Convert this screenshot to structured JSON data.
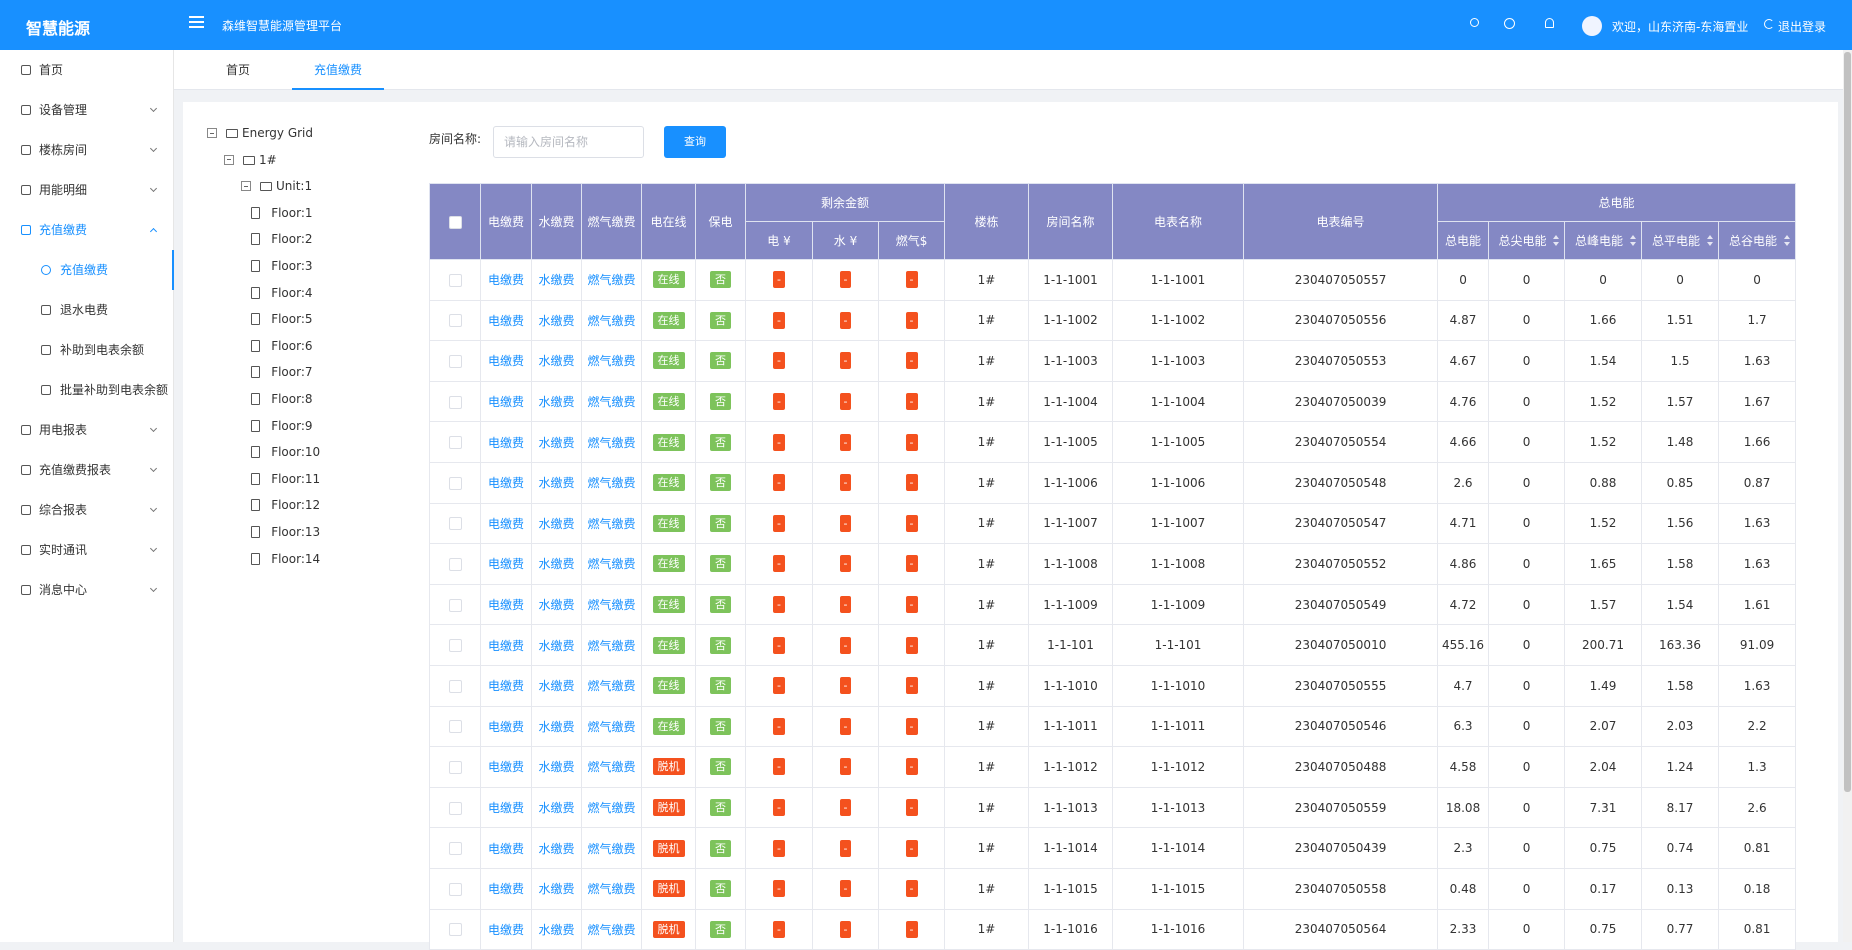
{
  "header": {
    "logo": "智慧能源",
    "platform": "森维智慧能源管理平台",
    "welcome": "欢迎，山东济南-东海置业",
    "logout": "退出登录"
  },
  "sidebar": {
    "active": 4,
    "active_child": 0,
    "items": [
      {
        "label": "首页"
      },
      {
        "label": "设备管理"
      },
      {
        "label": "楼栋房间"
      },
      {
        "label": "用能明细"
      },
      {
        "label": "充值缴费",
        "children": [
          "充值缴费",
          "退水电费",
          "补助到电表余额",
          "批量补助到电表余额"
        ]
      },
      {
        "label": "用电报表"
      },
      {
        "label": "充值缴费报表"
      },
      {
        "label": "综合报表"
      },
      {
        "label": "实时通讯"
      },
      {
        "label": "消息中心"
      }
    ]
  },
  "tabs": {
    "items": [
      "首页",
      "充值缴费"
    ],
    "active": 1
  },
  "tree": {
    "root": "Energy Grid",
    "building": "1#",
    "unit": "Unit:1",
    "floors": [
      "Floor:1",
      "Floor:2",
      "Floor:3",
      "Floor:4",
      "Floor:5",
      "Floor:6",
      "Floor:7",
      "Floor:8",
      "Floor:9",
      "Floor:10",
      "Floor:11",
      "Floor:12",
      "Floor:13",
      "Floor:14"
    ]
  },
  "search": {
    "label": "房间名称:",
    "placeholder": "请输入房间名称",
    "button": "查询"
  },
  "table": {
    "columns_before": [
      "电缴费",
      "水缴费",
      "燃气缴费",
      "电在线",
      "保电"
    ],
    "balance_group": {
      "label": "剩余金额",
      "columns": [
        "电 ¥",
        "水 ¥",
        "燃气$"
      ]
    },
    "columns_middle": [
      "楼栋",
      "房间名称",
      "电表名称",
      "电表编号"
    ],
    "energy_group": {
      "label": "总电能",
      "columns": [
        "总电能",
        "总尖电能",
        "总峰电能",
        "总平电能",
        "总谷电能"
      ]
    },
    "tag_colors": {
      "在线": "#7dc35b",
      "脱机": "#f4511e",
      "否": "#7dc35b",
      "-": "#f4511e"
    },
    "rows": [
      [
        "电缴费",
        "水缴费",
        "燃气缴费",
        "在线",
        "否",
        "-",
        "-",
        "-",
        "1#",
        "1-1-1001",
        "1-1-1001",
        "230407050557",
        0,
        0,
        0,
        0,
        0
      ],
      [
        "电缴费",
        "水缴费",
        "燃气缴费",
        "在线",
        "否",
        "-",
        "-",
        "-",
        "1#",
        "1-1-1002",
        "1-1-1002",
        "230407050556",
        4.87,
        0,
        1.66,
        1.51,
        1.7
      ],
      [
        "电缴费",
        "水缴费",
        "燃气缴费",
        "在线",
        "否",
        "-",
        "-",
        "-",
        "1#",
        "1-1-1003",
        "1-1-1003",
        "230407050553",
        4.67,
        0,
        1.54,
        1.5,
        1.63
      ],
      [
        "电缴费",
        "水缴费",
        "燃气缴费",
        "在线",
        "否",
        "-",
        "-",
        "-",
        "1#",
        "1-1-1004",
        "1-1-1004",
        "230407050039",
        4.76,
        0,
        1.52,
        1.57,
        1.67
      ],
      [
        "电缴费",
        "水缴费",
        "燃气缴费",
        "在线",
        "否",
        "-",
        "-",
        "-",
        "1#",
        "1-1-1005",
        "1-1-1005",
        "230407050554",
        4.66,
        0,
        1.52,
        1.48,
        1.66
      ],
      [
        "电缴费",
        "水缴费",
        "燃气缴费",
        "在线",
        "否",
        "-",
        "-",
        "-",
        "1#",
        "1-1-1006",
        "1-1-1006",
        "230407050548",
        2.6,
        0,
        0.88,
        0.85,
        0.87
      ],
      [
        "电缴费",
        "水缴费",
        "燃气缴费",
        "在线",
        "否",
        "-",
        "-",
        "-",
        "1#",
        "1-1-1007",
        "1-1-1007",
        "230407050547",
        4.71,
        0,
        1.52,
        1.56,
        1.63
      ],
      [
        "电缴费",
        "水缴费",
        "燃气缴费",
        "在线",
        "否",
        "-",
        "-",
        "-",
        "1#",
        "1-1-1008",
        "1-1-1008",
        "230407050552",
        4.86,
        0,
        1.65,
        1.58,
        1.63
      ],
      [
        "电缴费",
        "水缴费",
        "燃气缴费",
        "在线",
        "否",
        "-",
        "-",
        "-",
        "1#",
        "1-1-1009",
        "1-1-1009",
        "230407050549",
        4.72,
        0,
        1.57,
        1.54,
        1.61
      ],
      [
        "电缴费",
        "水缴费",
        "燃气缴费",
        "在线",
        "否",
        "-",
        "-",
        "-",
        "1#",
        "1-1-101",
        "1-1-101",
        "230407050010",
        455.16,
        0,
        200.71,
        163.36,
        91.09
      ],
      [
        "电缴费",
        "水缴费",
        "燃气缴费",
        "在线",
        "否",
        "-",
        "-",
        "-",
        "1#",
        "1-1-1010",
        "1-1-1010",
        "230407050555",
        4.7,
        0,
        1.49,
        1.58,
        1.63
      ],
      [
        "电缴费",
        "水缴费",
        "燃气缴费",
        "在线",
        "否",
        "-",
        "-",
        "-",
        "1#",
        "1-1-1011",
        "1-1-1011",
        "230407050546",
        6.3,
        0,
        2.07,
        2.03,
        2.2
      ],
      [
        "电缴费",
        "水缴费",
        "燃气缴费",
        "脱机",
        "否",
        "-",
        "-",
        "-",
        "1#",
        "1-1-1012",
        "1-1-1012",
        "230407050488",
        4.58,
        0,
        2.04,
        1.24,
        1.3
      ],
      [
        "电缴费",
        "水缴费",
        "燃气缴费",
        "脱机",
        "否",
        "-",
        "-",
        "-",
        "1#",
        "1-1-1013",
        "1-1-1013",
        "230407050559",
        18.08,
        0,
        7.31,
        8.17,
        2.6
      ],
      [
        "电缴费",
        "水缴费",
        "燃气缴费",
        "脱机",
        "否",
        "-",
        "-",
        "-",
        "1#",
        "1-1-1014",
        "1-1-1014",
        "230407050439",
        2.3,
        0,
        0.75,
        0.74,
        0.81
      ],
      [
        "电缴费",
        "水缴费",
        "燃气缴费",
        "脱机",
        "否",
        "-",
        "-",
        "-",
        "1#",
        "1-1-1015",
        "1-1-1015",
        "230407050558",
        0.48,
        0,
        0.17,
        0.13,
        0.18
      ],
      [
        "电缴费",
        "水缴费",
        "燃气缴费",
        "脱机",
        "否",
        "-",
        "-",
        "-",
        "1#",
        "1-1-1016",
        "1-1-1016",
        "230407050564",
        2.33,
        0,
        0.75,
        0.77,
        0.81
      ]
    ]
  }
}
